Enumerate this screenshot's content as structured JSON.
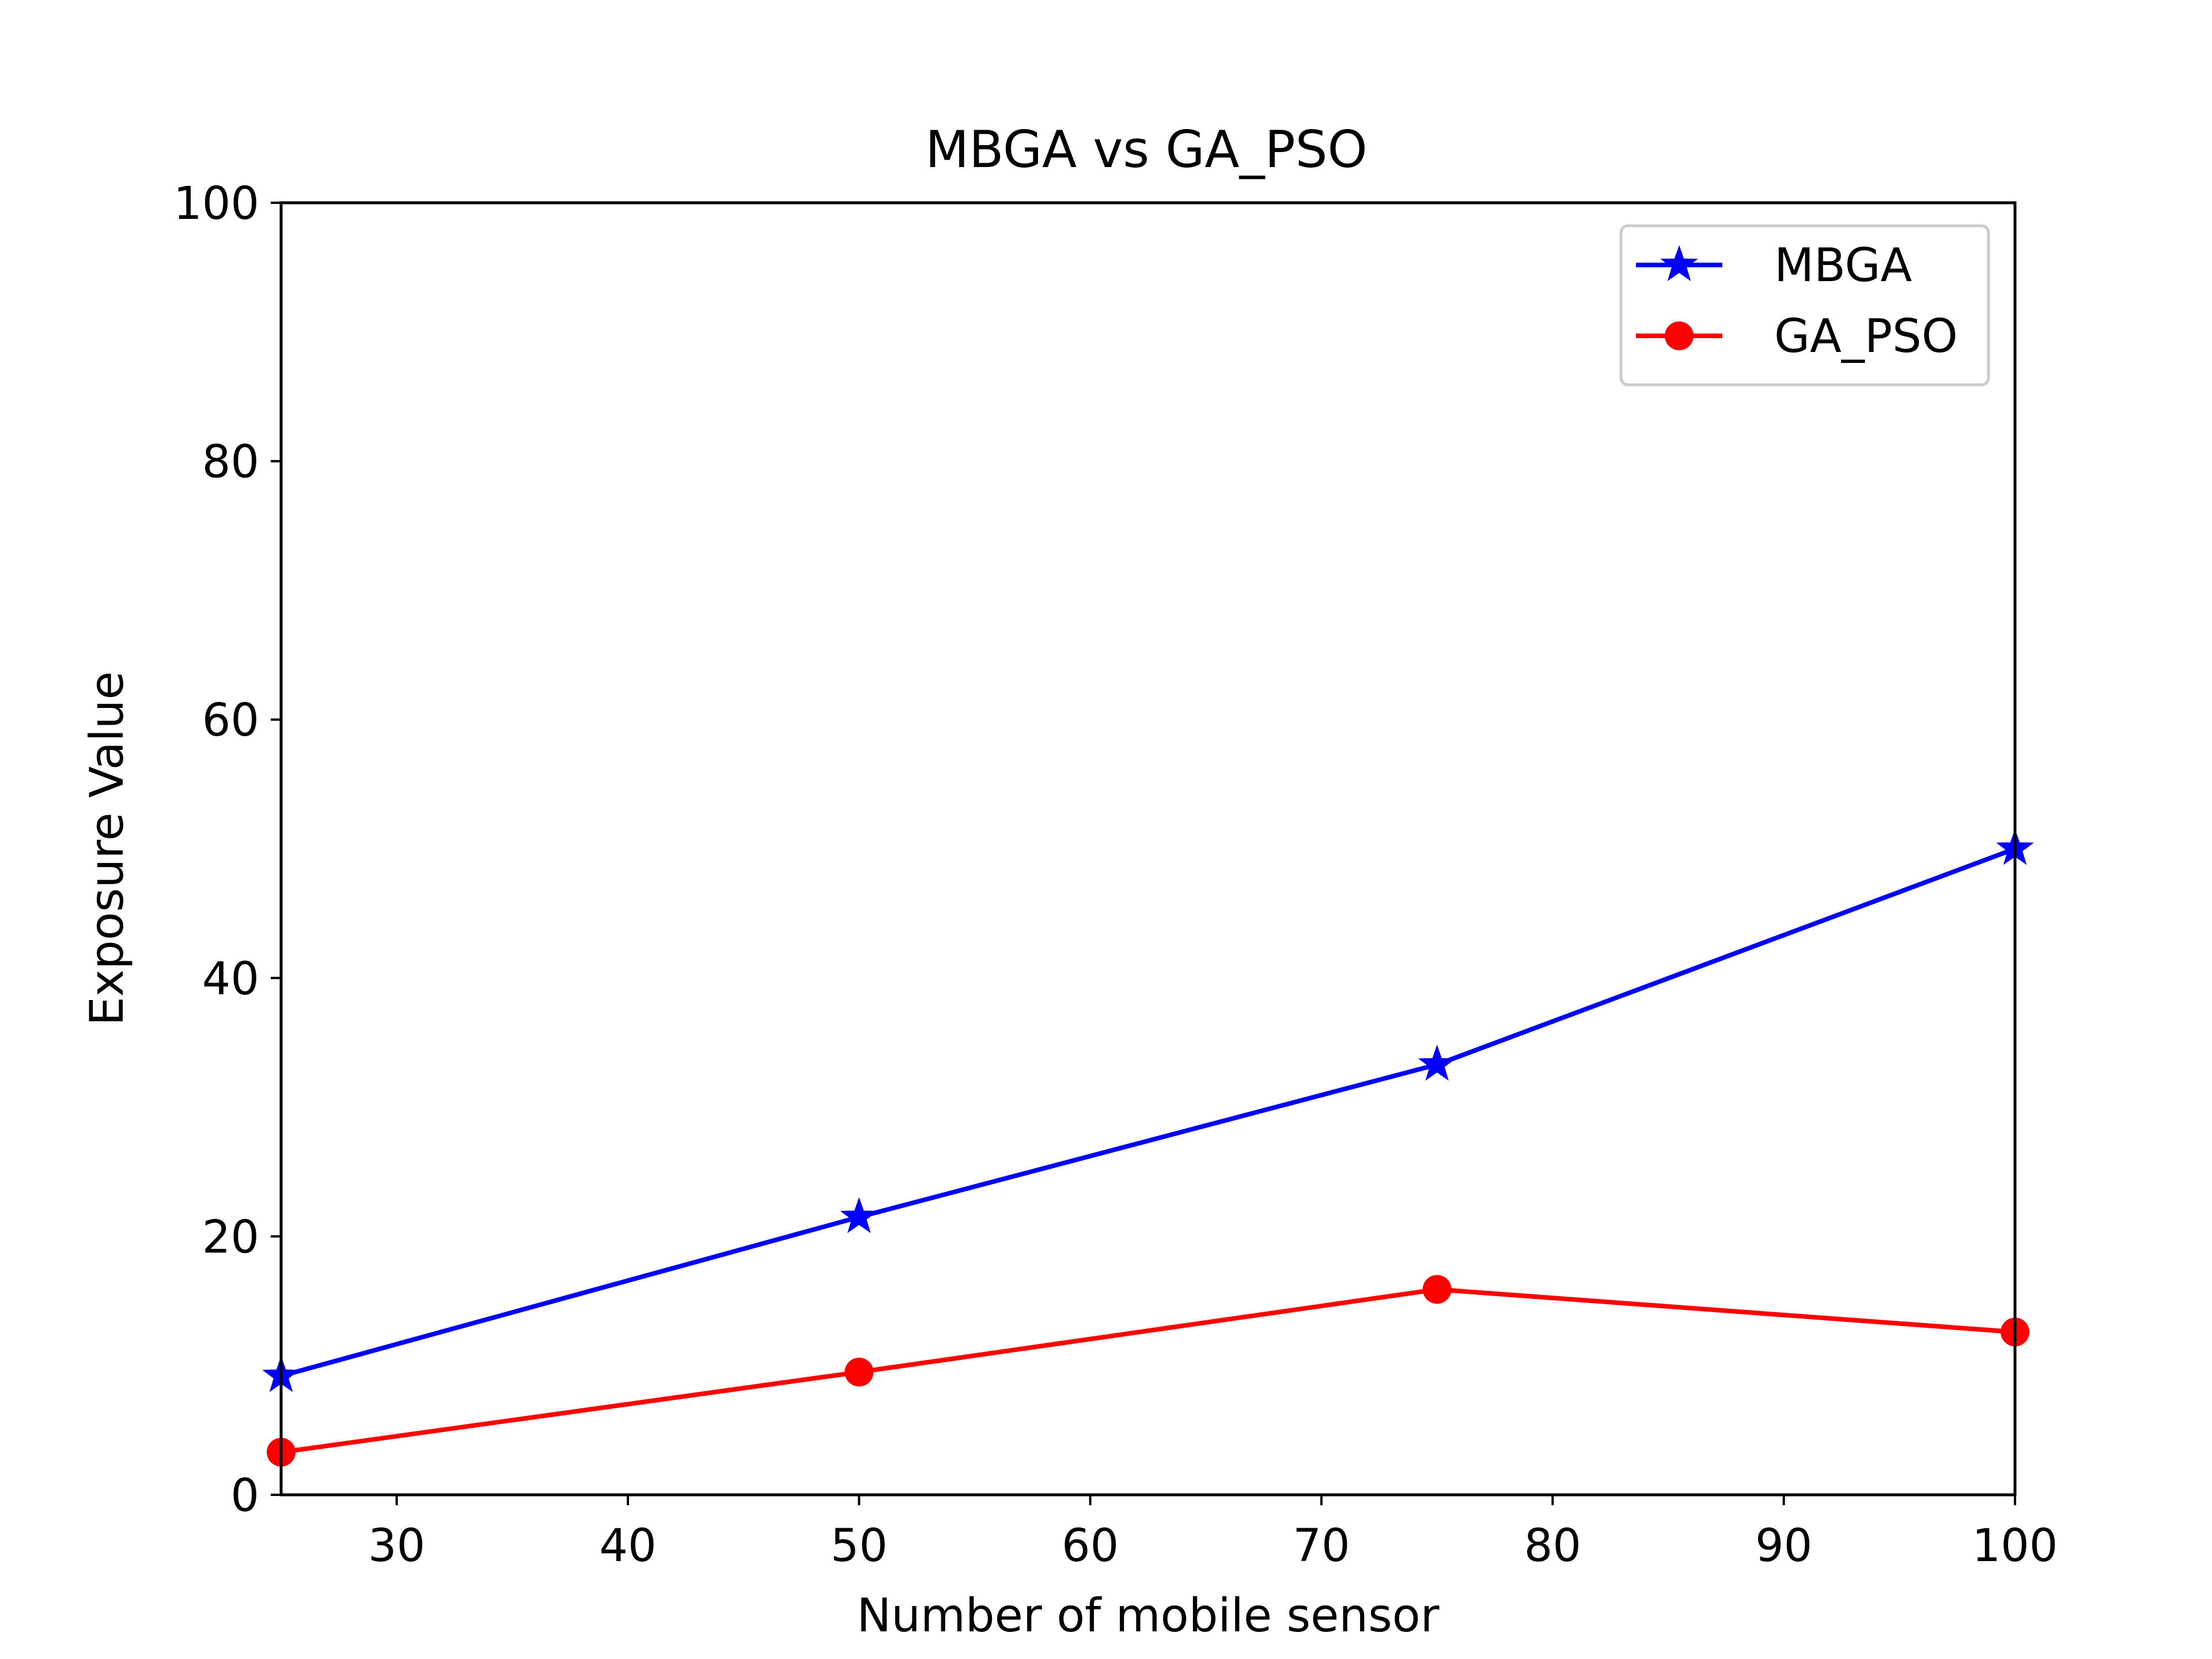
{
  "chart_data": {
    "type": "line",
    "title": "MBGA vs GA_PSO",
    "xlabel": "Number of mobile sensor",
    "ylabel": "Exposure Value",
    "xlim": [
      25,
      100
    ],
    "ylim": [
      0,
      100
    ],
    "xticks": [
      30,
      40,
      50,
      60,
      70,
      80,
      90,
      100
    ],
    "yticks": [
      0,
      20,
      40,
      60,
      80,
      100
    ],
    "grid": false,
    "legend_position": "top-right",
    "series": [
      {
        "name": "MBGA",
        "color": "#0000ff",
        "marker": "star",
        "x": [
          25,
          50,
          75,
          100
        ],
        "values": [
          9.2,
          21.5,
          33.3,
          50.0
        ]
      },
      {
        "name": "GA_PSO",
        "color": "#ff0000",
        "marker": "circle",
        "x": [
          25,
          50,
          75,
          100
        ],
        "values": [
          3.3,
          9.5,
          15.9,
          12.6
        ]
      }
    ]
  }
}
